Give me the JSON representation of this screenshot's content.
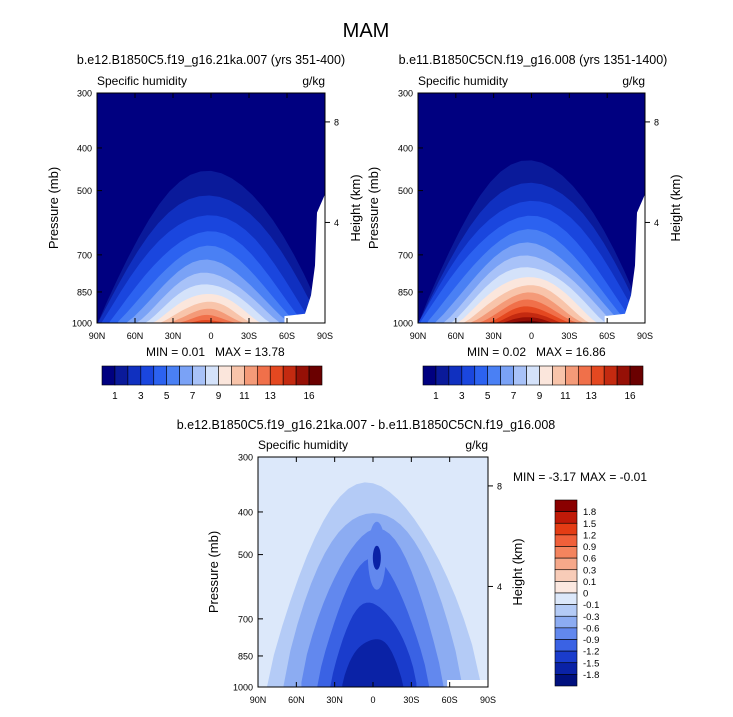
{
  "page_title": "MAM",
  "chart_data": [
    {
      "type": "heatmap",
      "id": "p1",
      "title": "b.e12.B1850C5.f19_g16.21ka.007 (yrs 351-400)",
      "left_label": "Specific humidity",
      "right_label": "g/kg",
      "xlabel": "",
      "ylabel": "Pressure (mb)",
      "ylabel_right": "Height (km)",
      "x_ticks": [
        "90N",
        "60N",
        "30N",
        "0",
        "30S",
        "60S",
        "90S"
      ],
      "y_ticks": [
        "300",
        "400",
        "500",
        "700",
        "850",
        "1000"
      ],
      "height_ticks": [
        "8",
        "4"
      ],
      "ylim": [
        1000,
        300
      ],
      "xlim": [
        90,
        -90
      ],
      "min_text": "MIN =  0.01",
      "max_text": "MAX =  13.78",
      "min": 0.01,
      "max": 13.78,
      "peak_lat": 3,
      "halfwidth": 44,
      "top_pressure": 390
    },
    {
      "type": "heatmap",
      "id": "p2",
      "title": "b.e11.B1850C5CN.f19_g16.008 (yrs 1351-1400)",
      "left_label": "Specific humidity",
      "right_label": "g/kg",
      "xlabel": "",
      "ylabel": "Pressure (mb)",
      "ylabel_right": "Height (km)",
      "x_ticks": [
        "90N",
        "60N",
        "30N",
        "0",
        "30S",
        "60S",
        "90S"
      ],
      "y_ticks": [
        "300",
        "400",
        "500",
        "700",
        "850",
        "1000"
      ],
      "height_ticks": [
        "8",
        "4"
      ],
      "ylim": [
        1000,
        300
      ],
      "xlim": [
        90,
        -90
      ],
      "min_text": "MIN =  0.02",
      "max_text": "MAX =  16.86",
      "min": 0.02,
      "max": 16.86,
      "peak_lat": 3,
      "halfwidth": 46,
      "top_pressure": 375
    },
    {
      "type": "heatmap",
      "id": "p3",
      "title": "b.e12.B1850C5.f19_g16.21ka.007 - b.e11.B1850C5CN.f19_g16.008",
      "left_label": "Specific humidity",
      "right_label": "g/kg",
      "xlabel": "",
      "ylabel": "Pressure (mb)",
      "ylabel_right": "Height (km)",
      "x_ticks": [
        "90N",
        "60N",
        "30N",
        "0",
        "30S",
        "60S",
        "90S"
      ],
      "y_ticks": [
        "300",
        "400",
        "500",
        "700",
        "850",
        "1000"
      ],
      "height_ticks": [
        "8",
        "4"
      ],
      "ylim": [
        1000,
        300
      ],
      "xlim": [
        90,
        -90
      ],
      "min_text": "MIN = -3.17",
      "max_text": "MAX = -0.01",
      "min": -3.17,
      "max": -0.01
    }
  ],
  "colorbar_abs": {
    "labels": [
      "1",
      "3",
      "5",
      "7",
      "9",
      "11",
      "13",
      "16"
    ],
    "colors": [
      "#000080",
      "#0a1a9a",
      "#1030c0",
      "#1a46de",
      "#2c62f0",
      "#4a80f4",
      "#7aa2f6",
      "#a8c2f8",
      "#d4e2fa",
      "#fbe6dc",
      "#f8c4aa",
      "#f49a78",
      "#f0704a",
      "#e44820",
      "#c42a10",
      "#961006",
      "#6a0000"
    ]
  },
  "colorbar_diff": {
    "labels": [
      "1.8",
      "1.5",
      "1.2",
      "0.9",
      "0.6",
      "0.3",
      "0.1",
      "0",
      "-0.1",
      "-0.3",
      "-0.6",
      "-0.9",
      "-1.2",
      "-1.5",
      "-1.8"
    ],
    "colors": [
      "#8a0000",
      "#c01a08",
      "#e43c14",
      "#f0603a",
      "#f4845e",
      "#f6a88a",
      "#f8ccb8",
      "#fbe8e0",
      "#dce8fa",
      "#b4cbf6",
      "#8cacf2",
      "#6288ee",
      "#3a62e4",
      "#1a3ccc",
      "#0a22a6",
      "#00107e"
    ]
  }
}
